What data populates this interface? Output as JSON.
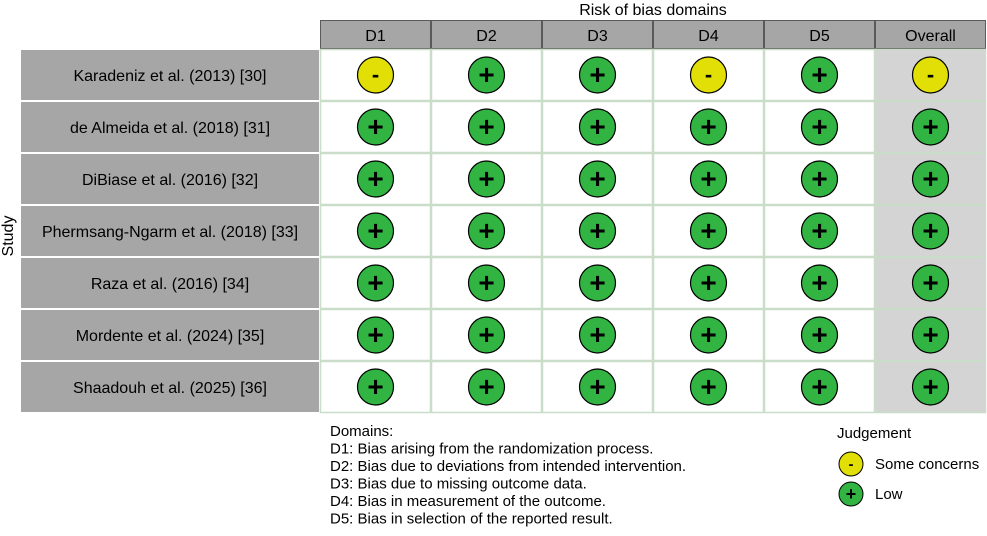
{
  "chart_data": {
    "type": "table",
    "title": "Risk of bias domains",
    "ylabel": "Study",
    "columns": [
      "D1",
      "D2",
      "D3",
      "D4",
      "D5",
      "Overall"
    ],
    "studies": [
      {
        "name": "Karadeniz et al. (2013) [30]",
        "judgements": [
          "some",
          "low",
          "low",
          "some",
          "low",
          "some"
        ]
      },
      {
        "name": "de Almeida et al. (2018) [31]",
        "judgements": [
          "low",
          "low",
          "low",
          "low",
          "low",
          "low"
        ]
      },
      {
        "name": "DiBiase et al. (2016) [32]",
        "judgements": [
          "low",
          "low",
          "low",
          "low",
          "low",
          "low"
        ]
      },
      {
        "name": "Phermsang-Ngarm et al. (2018) [33]",
        "judgements": [
          "low",
          "low",
          "low",
          "low",
          "low",
          "low"
        ]
      },
      {
        "name": "Raza et al. (2016) [34]",
        "judgements": [
          "low",
          "low",
          "low",
          "low",
          "low",
          "low"
        ]
      },
      {
        "name": "Mordente et al. (2024) [35]",
        "judgements": [
          "low",
          "low",
          "low",
          "low",
          "low",
          "low"
        ]
      },
      {
        "name": "Shaadouh et al. (2025) [36]",
        "judgements": [
          "low",
          "low",
          "low",
          "low",
          "low",
          "low"
        ]
      }
    ],
    "judgement_types": {
      "some": {
        "label": "Some concerns",
        "symbol": "-",
        "color": "#e2df07"
      },
      "low": {
        "label": "Low",
        "symbol": "+",
        "color": "#32b443"
      }
    },
    "domains_heading": "Domains:",
    "domains": [
      "D1: Bias arising from the randomization process.",
      "D2: Bias due to deviations from intended intervention.",
      "D3: Bias due to missing outcome data.",
      "D4: Bias in measurement of the outcome.",
      "D5: Bias in selection of the reported result."
    ],
    "legend_title": "Judgement",
    "legend_items": [
      "some",
      "low"
    ]
  },
  "colors": {
    "header_fill": "#a6a6a6",
    "study_fill": "#a6a6a6",
    "overall_fill": "#d4d4d4",
    "cell_fill": "#ffffff",
    "grid_line": "#c9ddc9",
    "circle_stroke": "#000000"
  }
}
